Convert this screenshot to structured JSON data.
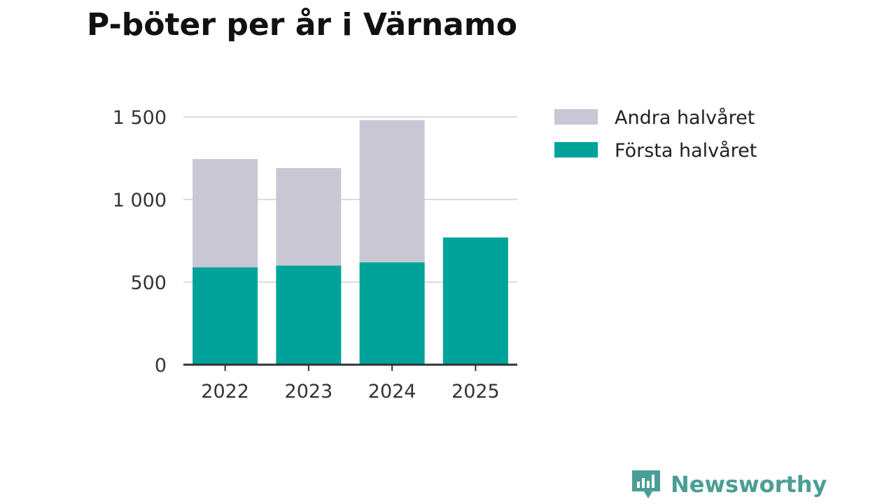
{
  "chart_data": {
    "type": "bar",
    "stacked": true,
    "title": "P-böter per år i Värnamo",
    "xlabel": "",
    "ylabel": "",
    "categories": [
      "2022",
      "2023",
      "2024",
      "2025"
    ],
    "series": [
      {
        "name": "Första halvåret",
        "color": "#00a39a",
        "values": [
          590,
          600,
          620,
          770
        ]
      },
      {
        "name": "Andra halvåret",
        "color": "#c8c7d3",
        "values": [
          655,
          590,
          860,
          0
        ]
      }
    ],
    "ylim": [
      0,
      1500
    ],
    "yticks": [
      {
        "value": 0,
        "label": "0"
      },
      {
        "value": 500,
        "label": "500"
      },
      {
        "value": 1000,
        "label": "1 000"
      },
      {
        "value": 1500,
        "label": "1 500"
      }
    ],
    "gridlines": true,
    "legend": {
      "placement": "top-right",
      "entries": [
        "Andra halvåret",
        "Första halvåret"
      ]
    }
  },
  "branding": {
    "name": "Newsworthy",
    "color": "#4a9e96",
    "icon": "bar-chart-speech-bubble-icon"
  }
}
